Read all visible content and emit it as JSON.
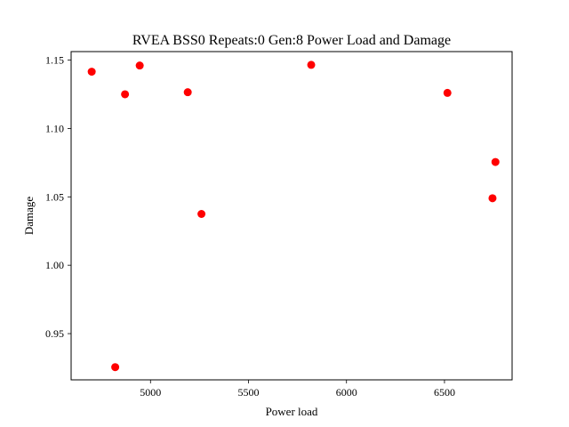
{
  "chart_data": {
    "type": "scatter",
    "title": "RVEA BSS0 Repeats:0 Gen:8 Power Load and Damage",
    "xlabel": "Power load",
    "ylabel": "Damage",
    "xlim": [
      4595,
      6845
    ],
    "ylim": [
      0.9162,
      1.1562
    ],
    "xticks": [
      5000,
      5500,
      6000,
      6500
    ],
    "yticks": [
      0.95,
      1.0,
      1.05,
      1.1,
      1.15
    ],
    "xtick_labels": [
      "5000",
      "5500",
      "6000",
      "6500"
    ],
    "ytick_labels": [
      "0.95",
      "1.00",
      "1.05",
      "1.10",
      "1.15"
    ],
    "grid": false,
    "marker_color": "#ff0000",
    "points": [
      {
        "x": 4700,
        "y": 1.1415
      },
      {
        "x": 4820,
        "y": 0.9255
      },
      {
        "x": 4870,
        "y": 1.125
      },
      {
        "x": 4945,
        "y": 1.146
      },
      {
        "x": 5190,
        "y": 1.1265
      },
      {
        "x": 5260,
        "y": 1.0375
      },
      {
        "x": 5820,
        "y": 1.1465
      },
      {
        "x": 6515,
        "y": 1.126
      },
      {
        "x": 6745,
        "y": 1.049
      },
      {
        "x": 6760,
        "y": 1.0755
      }
    ]
  }
}
